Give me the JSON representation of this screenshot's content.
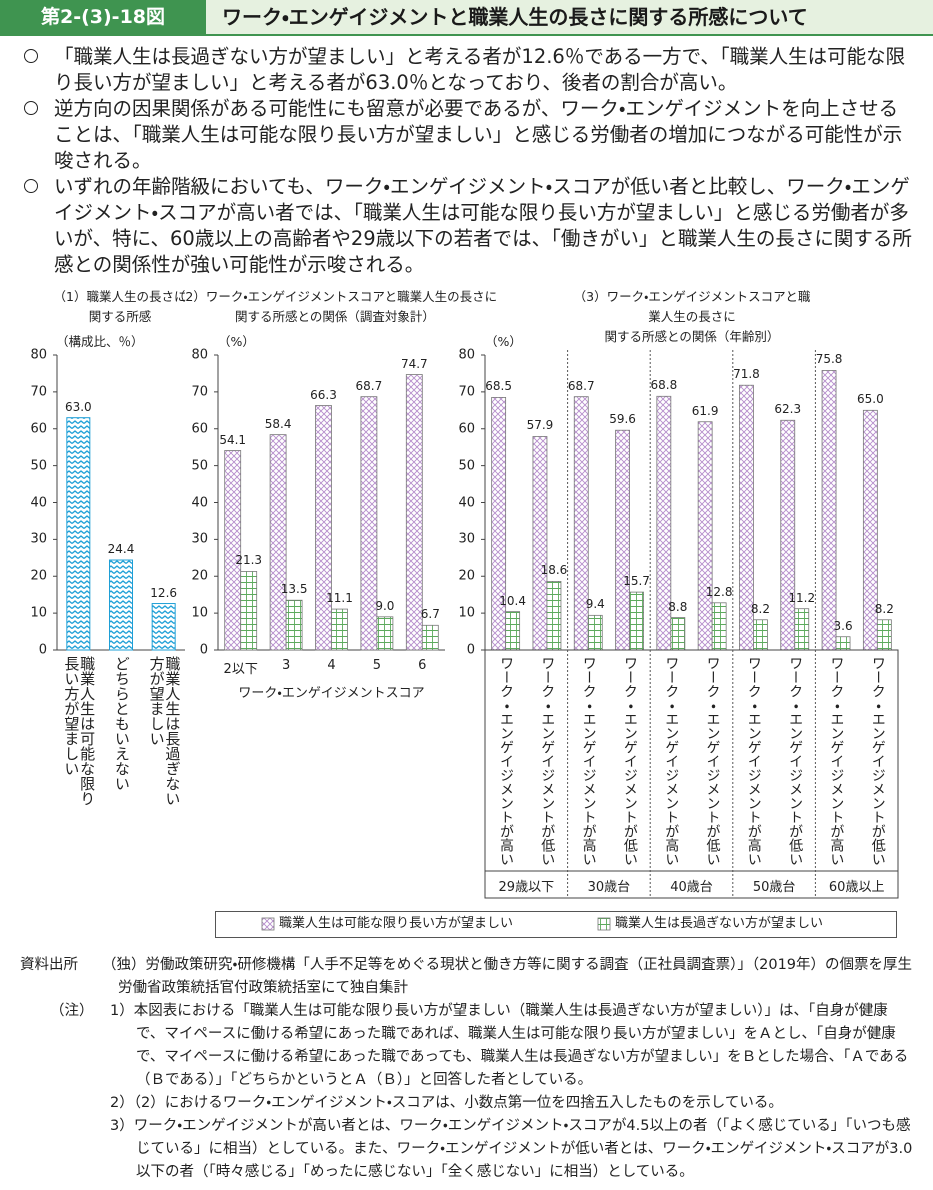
{
  "header": {
    "figure_number": "第2-(3)-18図",
    "title": "ワーク・エンゲイジメントと職業人生の長さに関する所感について"
  },
  "bullets": [
    "「職業人生は長過ぎない方が望ましい」と考える者が12.6％である一方で、「職業人生は可能な限り長い方が望ましい」と考える者が63.0％となっており、後者の割合が高い。",
    "逆方向の因果関係がある可能性にも留意が必要であるが、ワーク・エンゲイジメントを向上させることは、「職業人生は可能な限り長い方が望ましい」と感じる労働者の増加につながる可能性が示唆される。",
    "いずれの年齢階級においても、ワーク・エンゲイジメント・スコアが低い者と比較し、ワーク・エンゲイジメント・スコアが高い者では、「職業人生は可能な限り長い方が望ましい」と感じる労働者が多いが、特に、60歳以上の高齢者や29歳以下の若者では、「働きがい」と職業人生の長さに関する所感との関係性が強い可能性が示唆される。"
  ],
  "chart_data": [
    {
      "type": "bar",
      "title": "（1）職業人生の長さに\n関する所感",
      "ylabel": "（構成比、％）",
      "categories": [
        "職業人生は可能な限り長い方が望ましい",
        "どちらともいえない",
        "職業人生は長過ぎない方が望ましい"
      ],
      "values": [
        63.0,
        24.4,
        12.6
      ],
      "value_labels": [
        "63.0",
        "24.4",
        "12.6"
      ],
      "color": "#1e9fd6",
      "ylim": [
        0,
        80
      ],
      "yticks": [
        0,
        10,
        20,
        30,
        40,
        50,
        60,
        70,
        80
      ]
    },
    {
      "type": "bar",
      "title": "（2）ワーク・エンゲイジメントスコアと職業人生の長さに\n関する所感との関係（調査対象計）",
      "ylabel": "（%）",
      "xlabel": "ワーク・エンゲイジメントスコア",
      "categories": [
        "2以下",
        "3",
        "4",
        "5",
        "6"
      ],
      "series": [
        {
          "color": "#b58ccb",
          "values": [
            54.1,
            58.4,
            66.3,
            68.7,
            74.7
          ]
        },
        {
          "color": "#5daa5d",
          "values": [
            21.3,
            13.5,
            11.1,
            9.0,
            6.7
          ],
          "value_labels": [
            "21.3",
            "13.5",
            "11.1",
            "9.0",
            "6.7"
          ]
        }
      ],
      "ylim": [
        0,
        80
      ],
      "yticks": [
        0,
        10,
        20,
        30,
        40,
        50,
        60,
        70,
        80
      ]
    },
    {
      "type": "bar",
      "title": "（3）ワーク・エンゲイジメントスコアと職業人生の長さに\n関する所感との関係（年齢別）",
      "ylabel": "（%）",
      "categories": [
        "ワーク・エンゲイジメントが高い",
        "ワーク・エンゲイジメントが低い",
        "ワーク・エンゲイジメントが高い",
        "ワーク・エンゲイジメントが低い",
        "ワーク・エンゲイジメントが高い",
        "ワーク・エンゲイジメントが低い",
        "ワーク・エンゲイジメントが高い",
        "ワーク・エンゲイジメントが低い",
        "ワーク・エンゲイジメントが高い",
        "ワーク・エンゲイジメントが低い"
      ],
      "groups": [
        "29歳以下",
        "30歳台",
        "40歳台",
        "50歳台",
        "60歳以上"
      ],
      "series": [
        {
          "name": "職業人生は可能な限り長い方が望ましい",
          "color": "#b58ccb",
          "values": [
            68.5,
            57.9,
            68.7,
            59.6,
            68.8,
            61.9,
            71.8,
            62.3,
            75.8,
            65.0
          ],
          "value_labels": [
            "68.5",
            "57.9",
            "68.7",
            "59.6",
            "68.8",
            "61.9",
            "71.8",
            "62.3",
            "75.8",
            "65.0"
          ]
        },
        {
          "name": "職業人生は長過ぎない方が望ましい",
          "color": "#5daa5d",
          "values": [
            10.4,
            18.6,
            9.4,
            15.7,
            8.8,
            12.8,
            8.2,
            11.2,
            3.6,
            8.2
          ]
        }
      ],
      "ylim": [
        0,
        80
      ],
      "yticks": [
        0,
        10,
        20,
        30,
        40,
        50,
        60,
        70,
        80
      ]
    }
  ],
  "source": {
    "label": "資料出所",
    "text": "（独）労働政策研究・研修機構「人手不足等をめぐる現状と働き方等に関する調査（正社員調査票）」（2019年）の個票を厚生労働省政策統括官付政策統括室にて独自集計"
  },
  "notes": {
    "label": "（注）",
    "items": [
      "1）本図表における「職業人生は可能な限り長い方が望ましい（職業人生は長過ぎない方が望ましい）」は、「自身が健康で、マイペースに働ける希望にあった職であれば、職業人生は可能な限り長い方が望ましい」をＡとし、「自身が健康で、マイペースに働ける希望にあった職であっても、職業人生は長過ぎない方が望ましい」をＢとした場合、「Ａである（Ｂである）」「どちらかというとＡ（Ｂ）」と回答した者としている。",
      "2）（2）におけるワーク・エンゲイジメント・スコアは、小数点第一位を四捨五入したものを示している。",
      "3）ワーク・エンゲイジメントが高い者とは、ワーク・エンゲイジメント・スコアが4.5以上の者（「よく感じている」「いつも感じている」に相当）としている。また、ワーク・エンゲイジメントが低い者とは、ワーク・エンゲイジメント・スコアが3.0以下の者（「時々感じる」「めったに感じない」「全く感じない」に相当）としている。"
    ]
  }
}
